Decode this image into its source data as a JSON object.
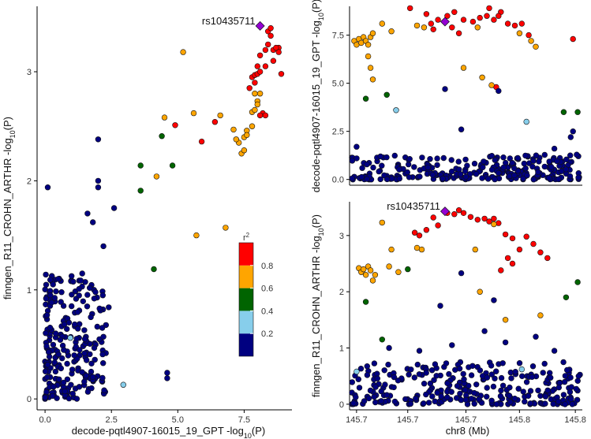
{
  "chart_data": [
    {
      "id": "left",
      "type": "scatter",
      "title": "",
      "xlabel_main": "decode-pqtl4907-16015_19_GPT -log",
      "xlabel_sub": "10",
      "xlabel_end": "(P)",
      "ylabel_main": "finngen_R11_CROHN_ARTHR -log",
      "ylabel_sub": "10",
      "ylabel_end": "(P)",
      "xlim": [
        -0.3,
        9.3
      ],
      "ylim": [
        -0.1,
        3.6
      ],
      "xticks": [
        0,
        2.5,
        5,
        7.5
      ],
      "xtick_labels": [
        "0.0",
        "2.5",
        "5.0",
        "7.5"
      ],
      "yticks": [
        0,
        1,
        2,
        3
      ],
      "ytick_labels": [
        "0",
        "1",
        "2",
        "3"
      ],
      "lead_snp": {
        "label": "rs10435711",
        "x": 8.1,
        "y": 3.42
      },
      "points": [
        [
          0.1,
          1.94,
          "navy"
        ],
        [
          2.0,
          2.38,
          "navy"
        ],
        [
          2.0,
          2.0,
          "navy"
        ],
        [
          2.0,
          1.94,
          "navy"
        ],
        [
          1.6,
          1.7,
          "navy"
        ],
        [
          2.6,
          1.75,
          "navy"
        ],
        [
          1.8,
          1.62,
          "navy"
        ],
        [
          2.2,
          1.4,
          "navy"
        ],
        [
          1.4,
          1.15,
          "navy"
        ],
        [
          1.9,
          0.98,
          "navy"
        ],
        [
          2.4,
          0.84,
          "navy"
        ],
        [
          2.2,
          0.57,
          "navy"
        ],
        [
          4.6,
          0.24,
          "navy"
        ],
        [
          4.6,
          0.19,
          "navy"
        ],
        [
          1.1,
          0.4,
          "navy"
        ],
        [
          0.4,
          0.6,
          "navy"
        ],
        [
          0.9,
          0.7,
          "navy"
        ],
        [
          1.3,
          0.45,
          "navy"
        ],
        [
          0.6,
          0.28,
          "navy"
        ],
        [
          0.2,
          0.95,
          "navy"
        ],
        [
          0.3,
          1.05,
          "navy"
        ],
        [
          0.5,
          1.1,
          "navy"
        ],
        [
          1.0,
          0.85,
          "navy"
        ],
        [
          1.5,
          0.55,
          "navy"
        ],
        [
          0.7,
          0.15,
          "navy"
        ],
        [
          0.95,
          0.56,
          "lightblue"
        ],
        [
          2.95,
          0.13,
          "lightblue"
        ],
        [
          3.6,
          2.14,
          "green"
        ],
        [
          3.6,
          1.91,
          "green"
        ],
        [
          4.4,
          2.41,
          "green"
        ],
        [
          4.8,
          2.14,
          "green"
        ],
        [
          4.1,
          1.19,
          "green"
        ],
        [
          5.2,
          3.18,
          "orange"
        ],
        [
          4.5,
          2.58,
          "orange"
        ],
        [
          5.6,
          2.62,
          "orange"
        ],
        [
          6.6,
          2.6,
          "orange"
        ],
        [
          4.2,
          2.04,
          "orange"
        ],
        [
          5.7,
          1.5,
          "orange"
        ],
        [
          6.8,
          1.57,
          "orange"
        ],
        [
          7.1,
          2.47,
          "orange"
        ],
        [
          7.3,
          2.35,
          "orange"
        ],
        [
          7.2,
          2.38,
          "orange"
        ],
        [
          7.5,
          2.4,
          "orange"
        ],
        [
          7.4,
          2.25,
          "orange"
        ],
        [
          7.6,
          2.46,
          "orange"
        ],
        [
          7.8,
          2.63,
          "orange"
        ],
        [
          7.8,
          2.5,
          "orange"
        ],
        [
          7.9,
          2.65,
          "orange"
        ],
        [
          8.0,
          2.73,
          "orange"
        ],
        [
          7.6,
          2.42,
          "orange"
        ],
        [
          7.5,
          2.28,
          "orange"
        ],
        [
          7.9,
          2.8,
          "orange"
        ],
        [
          8.1,
          2.8,
          "orange"
        ],
        [
          8.0,
          2.7,
          "orange"
        ],
        [
          4.9,
          2.51,
          "red"
        ],
        [
          6.4,
          2.54,
          "red"
        ],
        [
          5.9,
          2.36,
          "red"
        ],
        [
          7.8,
          2.95,
          "red"
        ],
        [
          7.9,
          2.97,
          "red"
        ],
        [
          7.9,
          2.9,
          "red"
        ],
        [
          8.0,
          3.05,
          "red"
        ],
        [
          8.0,
          2.98,
          "red"
        ],
        [
          8.1,
          3.15,
          "red"
        ],
        [
          8.3,
          3.2,
          "red"
        ],
        [
          8.4,
          3.37,
          "red"
        ],
        [
          8.5,
          3.33,
          "red"
        ],
        [
          8.4,
          3.25,
          "red"
        ],
        [
          8.6,
          3.2,
          "red"
        ],
        [
          8.6,
          3.1,
          "red"
        ],
        [
          8.8,
          3.22,
          "red"
        ],
        [
          8.8,
          3.18,
          "red"
        ],
        [
          8.9,
          2.98,
          "red"
        ],
        [
          8.3,
          3.05,
          "red"
        ],
        [
          8.2,
          2.62,
          "red"
        ],
        [
          8.3,
          2.6,
          "red"
        ],
        [
          8.1,
          2.6,
          "red"
        ],
        [
          8.5,
          3.4,
          "red"
        ],
        [
          8.7,
          3.22,
          "red"
        ],
        [
          8.1,
          3.0,
          "red"
        ],
        [
          7.7,
          2.85,
          "red"
        ]
      ],
      "legend": {
        "title": "r",
        "title_sup": "2",
        "labels": [
          "0.2",
          "0.4",
          "0.6",
          "0.8"
        ],
        "levels": [
          0.2,
          0.4,
          0.6,
          0.8
        ],
        "bins": [
          [
            0,
            0.2,
            "navy"
          ],
          [
            0.2,
            0.4,
            "lightblue"
          ],
          [
            0.4,
            0.6,
            "green"
          ],
          [
            0.6,
            0.8,
            "orange"
          ],
          [
            0.8,
            1.0,
            "red"
          ]
        ],
        "placement": "bottom-right, inside left panel"
      }
    },
    {
      "id": "top-right",
      "type": "scatter",
      "title": "",
      "xlabel": "",
      "ylabel_main": "decode-pqtl4907-16015_19_GPT -log",
      "ylabel_sub": "10",
      "ylabel_end": "(P)",
      "xlim": [
        0,
        100
      ],
      "ylim": [
        -0.3,
        9.0
      ],
      "yticks": [
        0,
        2.5,
        5,
        7.5
      ],
      "ytick_labels": [
        "0.0",
        "2.5",
        "5.0",
        "7.5"
      ],
      "lead_snp": {
        "label": "",
        "x": 41,
        "y": 8.2
      },
      "points": [
        [
          26,
          8.9,
          "red"
        ],
        [
          33,
          8.6,
          "red"
        ],
        [
          38,
          8.3,
          "red"
        ],
        [
          42,
          8.5,
          "red"
        ],
        [
          45,
          8.7,
          "red"
        ],
        [
          49,
          8.3,
          "red"
        ],
        [
          53,
          8.2,
          "red"
        ],
        [
          56,
          8.4,
          "red"
        ],
        [
          59,
          8.5,
          "red"
        ],
        [
          62,
          8.3,
          "red"
        ],
        [
          65,
          8.7,
          "red"
        ],
        [
          68,
          8.1,
          "red"
        ],
        [
          71,
          8.0,
          "red"
        ],
        [
          74,
          8.1,
          "red"
        ],
        [
          77,
          7.5,
          "red"
        ],
        [
          36,
          7.8,
          "red"
        ],
        [
          44,
          7.9,
          "red"
        ],
        [
          47,
          7.6,
          "red"
        ],
        [
          64,
          8.5,
          "red"
        ],
        [
          96,
          7.3,
          "red"
        ],
        [
          60,
          8.9,
          "red"
        ],
        [
          63,
          4.8,
          "red"
        ],
        [
          35,
          8.1,
          "red"
        ],
        [
          2,
          7.2,
          "orange"
        ],
        [
          3,
          7.0,
          "orange"
        ],
        [
          4,
          7.3,
          "orange"
        ],
        [
          5,
          7.1,
          "orange"
        ],
        [
          6,
          7.4,
          "orange"
        ],
        [
          7,
          7.2,
          "orange"
        ],
        [
          8,
          7.0,
          "orange"
        ],
        [
          9,
          7.4,
          "orange"
        ],
        [
          10,
          7.6,
          "orange"
        ],
        [
          8,
          6.4,
          "orange"
        ],
        [
          9,
          5.8,
          "orange"
        ],
        [
          10,
          5.2,
          "orange"
        ],
        [
          14,
          8.1,
          "orange"
        ],
        [
          18,
          7.7,
          "orange"
        ],
        [
          29,
          8.0,
          "orange"
        ],
        [
          32,
          7.9,
          "orange"
        ],
        [
          49,
          5.8,
          "orange"
        ],
        [
          57,
          5.3,
          "orange"
        ],
        [
          61,
          4.9,
          "orange"
        ],
        [
          73,
          7.6,
          "orange"
        ],
        [
          78,
          7.2,
          "orange"
        ],
        [
          80,
          6.9,
          "orange"
        ],
        [
          55,
          7.9,
          "orange"
        ],
        [
          7,
          4.2,
          "green"
        ],
        [
          16,
          4.4,
          "green"
        ],
        [
          92,
          3.5,
          "green"
        ],
        [
          98,
          3.5,
          "green"
        ],
        [
          76,
          3.0,
          "lightblue"
        ],
        [
          20,
          3.6,
          "lightblue"
        ],
        [
          64,
          4.6,
          "navy"
        ],
        [
          41,
          4.7,
          "navy"
        ],
        [
          48,
          2.6,
          "navy"
        ],
        [
          96,
          2.5,
          "navy"
        ],
        [
          3,
          1.7,
          "navy"
        ],
        [
          88,
          1.6,
          "navy"
        ],
        [
          95,
          2.2,
          "navy"
        ]
      ],
      "background_cloud": {
        "color": "navy",
        "x_range": [
          1,
          99
        ],
        "y_range": [
          0.0,
          1.3
        ],
        "count": 260,
        "seed": 7
      }
    },
    {
      "id": "bottom-right",
      "type": "scatter",
      "title": "",
      "xlabel": "chr8 (Mb)",
      "ylabel_main": "finngen_R11_CROHN_ARTHR -log",
      "ylabel_sub": "10",
      "ylabel_end": "(P)",
      "xlim": [
        0,
        100
      ],
      "ylim": [
        -0.1,
        3.6
      ],
      "yticks": [
        0,
        1,
        2,
        3
      ],
      "ytick_labels": [
        "0",
        "1",
        "2",
        "3"
      ],
      "xticks": [
        3,
        25,
        50,
        73,
        97
      ],
      "xtick_labels": [
        "145.7",
        "145.7",
        "145.7",
        "145.8",
        "145.8"
      ],
      "lead_snp": {
        "label": "rs10435711",
        "x": 41,
        "y": 3.43
      },
      "points": [
        [
          28,
          3.05,
          "red"
        ],
        [
          33,
          3.1,
          "red"
        ],
        [
          36,
          3.32,
          "red"
        ],
        [
          38,
          3.18,
          "red"
        ],
        [
          42,
          3.4,
          "red"
        ],
        [
          45,
          3.38,
          "red"
        ],
        [
          49,
          3.4,
          "red"
        ],
        [
          52,
          3.33,
          "red"
        ],
        [
          55,
          3.28,
          "red"
        ],
        [
          58,
          3.3,
          "red"
        ],
        [
          60,
          3.25,
          "red"
        ],
        [
          62,
          3.3,
          "red"
        ],
        [
          64,
          3.22,
          "red"
        ],
        [
          67,
          3.02,
          "red"
        ],
        [
          70,
          2.95,
          "red"
        ],
        [
          73,
          2.75,
          "red"
        ],
        [
          76,
          2.98,
          "red"
        ],
        [
          79,
          2.85,
          "red"
        ],
        [
          82,
          2.7,
          "red"
        ],
        [
          85,
          2.6,
          "red"
        ],
        [
          70,
          2.5,
          "red"
        ],
        [
          68,
          2.6,
          "red"
        ],
        [
          65,
          2.38,
          "red"
        ],
        [
          30,
          3.0,
          "red"
        ],
        [
          47,
          3.45,
          "red"
        ],
        [
          4,
          2.42,
          "orange"
        ],
        [
          5,
          2.35,
          "orange"
        ],
        [
          6,
          2.4,
          "orange"
        ],
        [
          7,
          2.3,
          "orange"
        ],
        [
          8,
          2.45,
          "orange"
        ],
        [
          9,
          2.38,
          "orange"
        ],
        [
          10,
          2.2,
          "orange"
        ],
        [
          11,
          2.3,
          "orange"
        ],
        [
          14,
          3.23,
          "orange"
        ],
        [
          17,
          2.45,
          "orange"
        ],
        [
          18,
          2.75,
          "orange"
        ],
        [
          21,
          2.35,
          "orange"
        ],
        [
          29,
          2.78,
          "orange"
        ],
        [
          31,
          2.75,
          "orange"
        ],
        [
          56,
          2.0,
          "orange"
        ],
        [
          67,
          1.5,
          "orange"
        ],
        [
          82,
          1.58,
          "orange"
        ],
        [
          54,
          2.75,
          "orange"
        ],
        [
          62,
          3.2,
          "orange"
        ],
        [
          7,
          1.82,
          "green"
        ],
        [
          14,
          1.15,
          "green"
        ],
        [
          25,
          2.4,
          "green"
        ],
        [
          93,
          1.9,
          "green"
        ],
        [
          98,
          2.17,
          "green"
        ],
        [
          3,
          0.58,
          "lightblue"
        ],
        [
          74,
          0.62,
          "lightblue"
        ],
        [
          39,
          1.75,
          "navy"
        ],
        [
          48,
          2.33,
          "navy"
        ],
        [
          62,
          1.85,
          "navy"
        ],
        [
          67,
          1.1,
          "navy"
        ],
        [
          80,
          1.2,
          "navy"
        ],
        [
          58,
          1.3,
          "navy"
        ],
        [
          17,
          1.0,
          "navy"
        ],
        [
          30,
          0.95,
          "navy"
        ],
        [
          44,
          1.05,
          "navy"
        ],
        [
          88,
          0.95,
          "navy"
        ]
      ],
      "background_cloud": {
        "color": "navy",
        "x_range": [
          1,
          99
        ],
        "y_range": [
          0.0,
          0.75
        ],
        "count": 280,
        "seed": 11
      }
    }
  ],
  "colors": {
    "red": "#ff0000",
    "orange": "#ffa500",
    "green": "#006400",
    "lightblue": "#87ceeb",
    "navy": "#000080",
    "lead": "#9400d3"
  }
}
